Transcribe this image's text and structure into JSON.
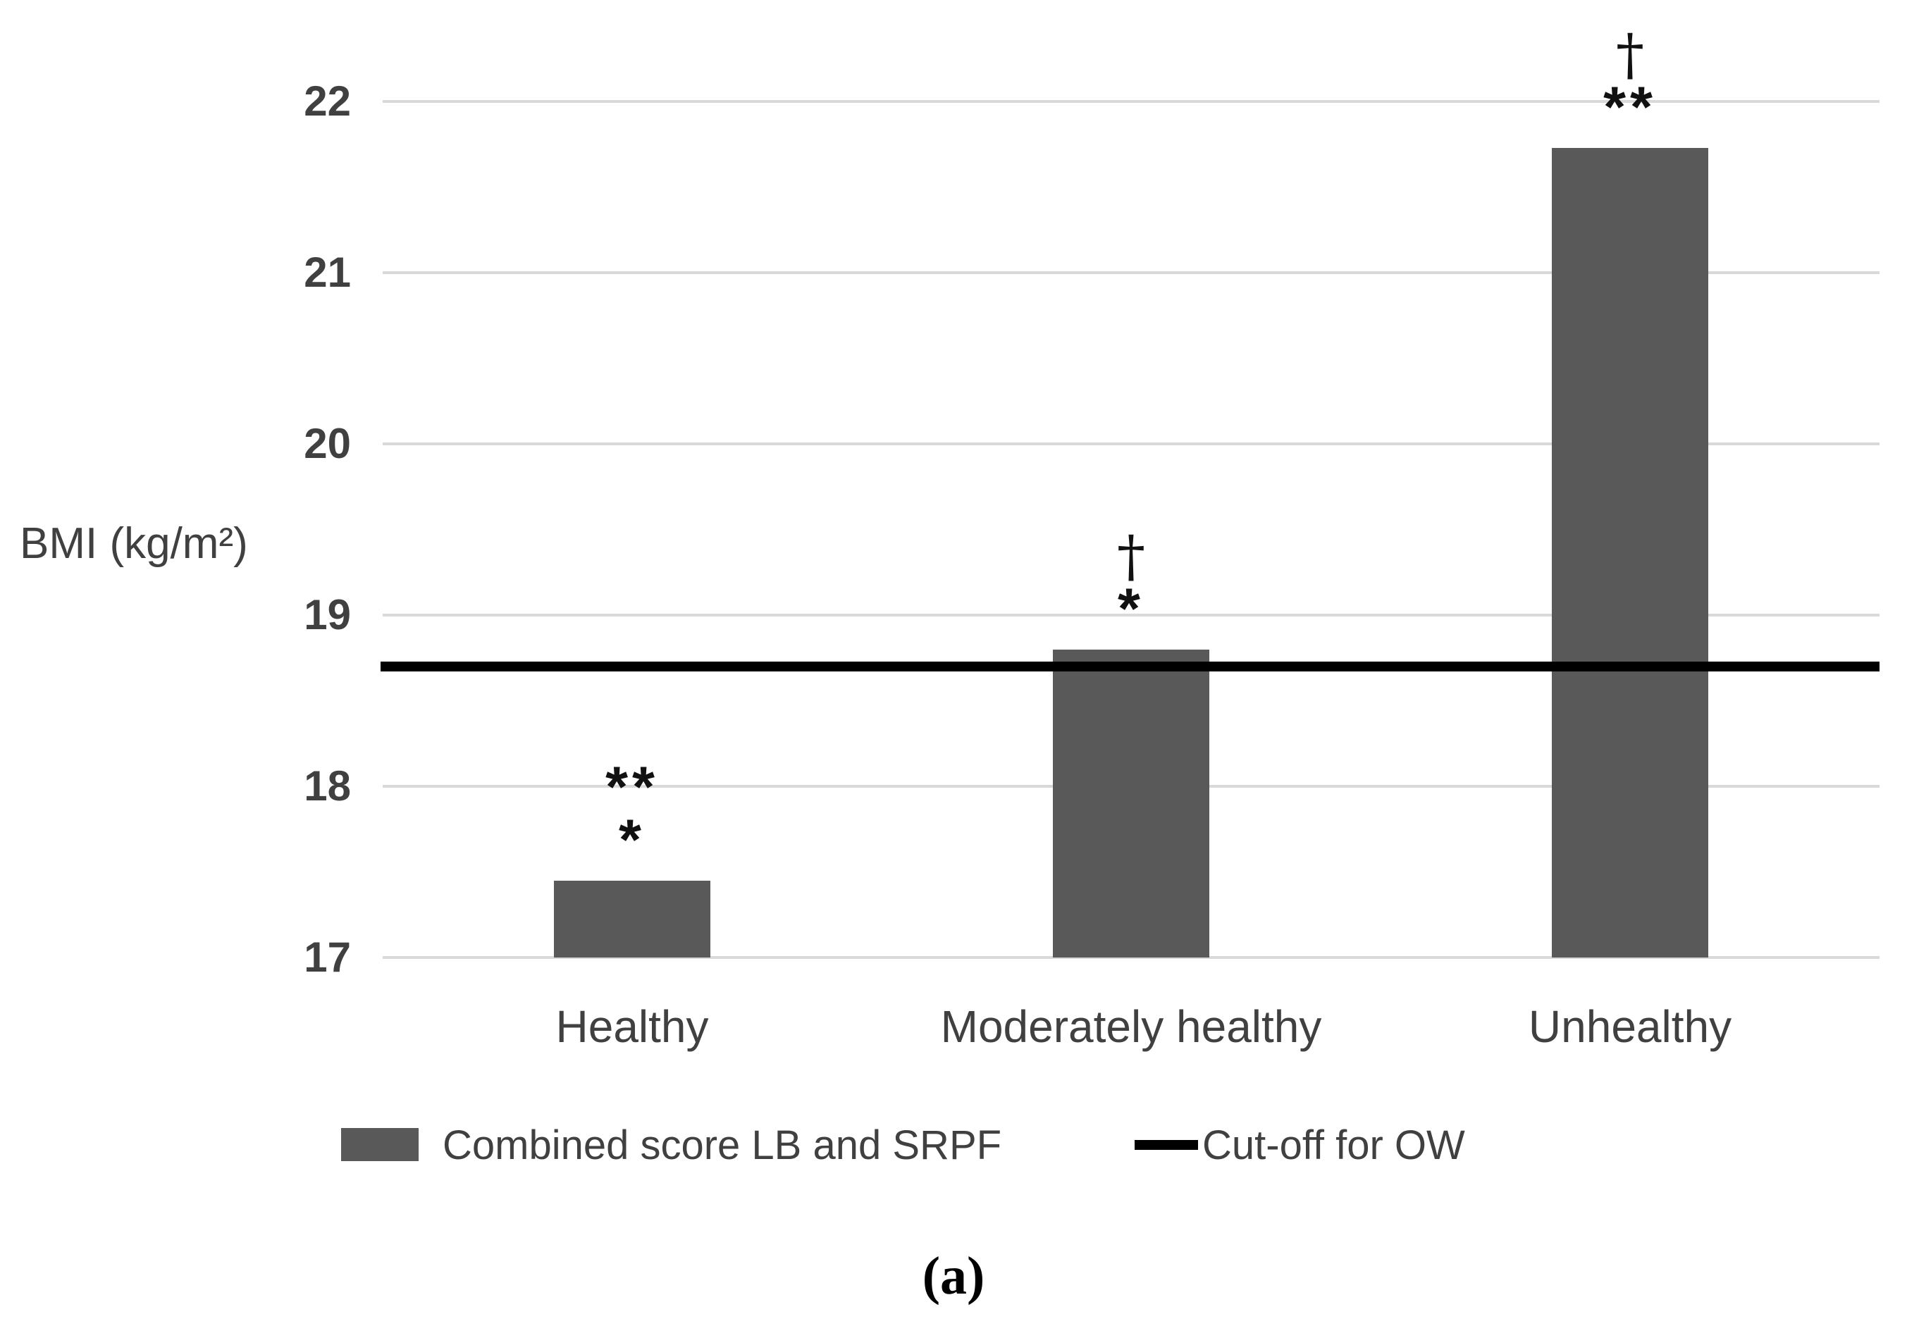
{
  "chart_data": {
    "type": "bar",
    "title": "",
    "ylabel": "BMI (kg/m²)",
    "categories": [
      "Healthy",
      "Moderately healthy",
      "Unhealthy"
    ],
    "series": [
      {
        "name": "Combined score LB and SRPF",
        "values": [
          17.45,
          18.8,
          21.73
        ]
      }
    ],
    "cutoff_line": {
      "label": "Cut-off for OW",
      "value": 18.7
    },
    "ylim": [
      17,
      22
    ],
    "yticks": [
      17,
      18,
      19,
      20,
      21,
      22
    ],
    "grid": true,
    "legend_position": "bottom",
    "annotations": [
      {
        "category": "Healthy",
        "lines": [
          "**",
          "*"
        ]
      },
      {
        "category": "Moderately healthy",
        "lines": [
          "†",
          "*"
        ]
      },
      {
        "category": "Unhealthy",
        "lines": [
          "†",
          "**"
        ]
      }
    ]
  },
  "legend": {
    "bar_label": "Combined score LB and SRPF",
    "line_label": "Cut-off for OW"
  },
  "caption": "(a)",
  "colors": {
    "bar": "#595959",
    "cutoff": "#000000",
    "gridline": "#d9d9d9",
    "text": "#404040"
  }
}
